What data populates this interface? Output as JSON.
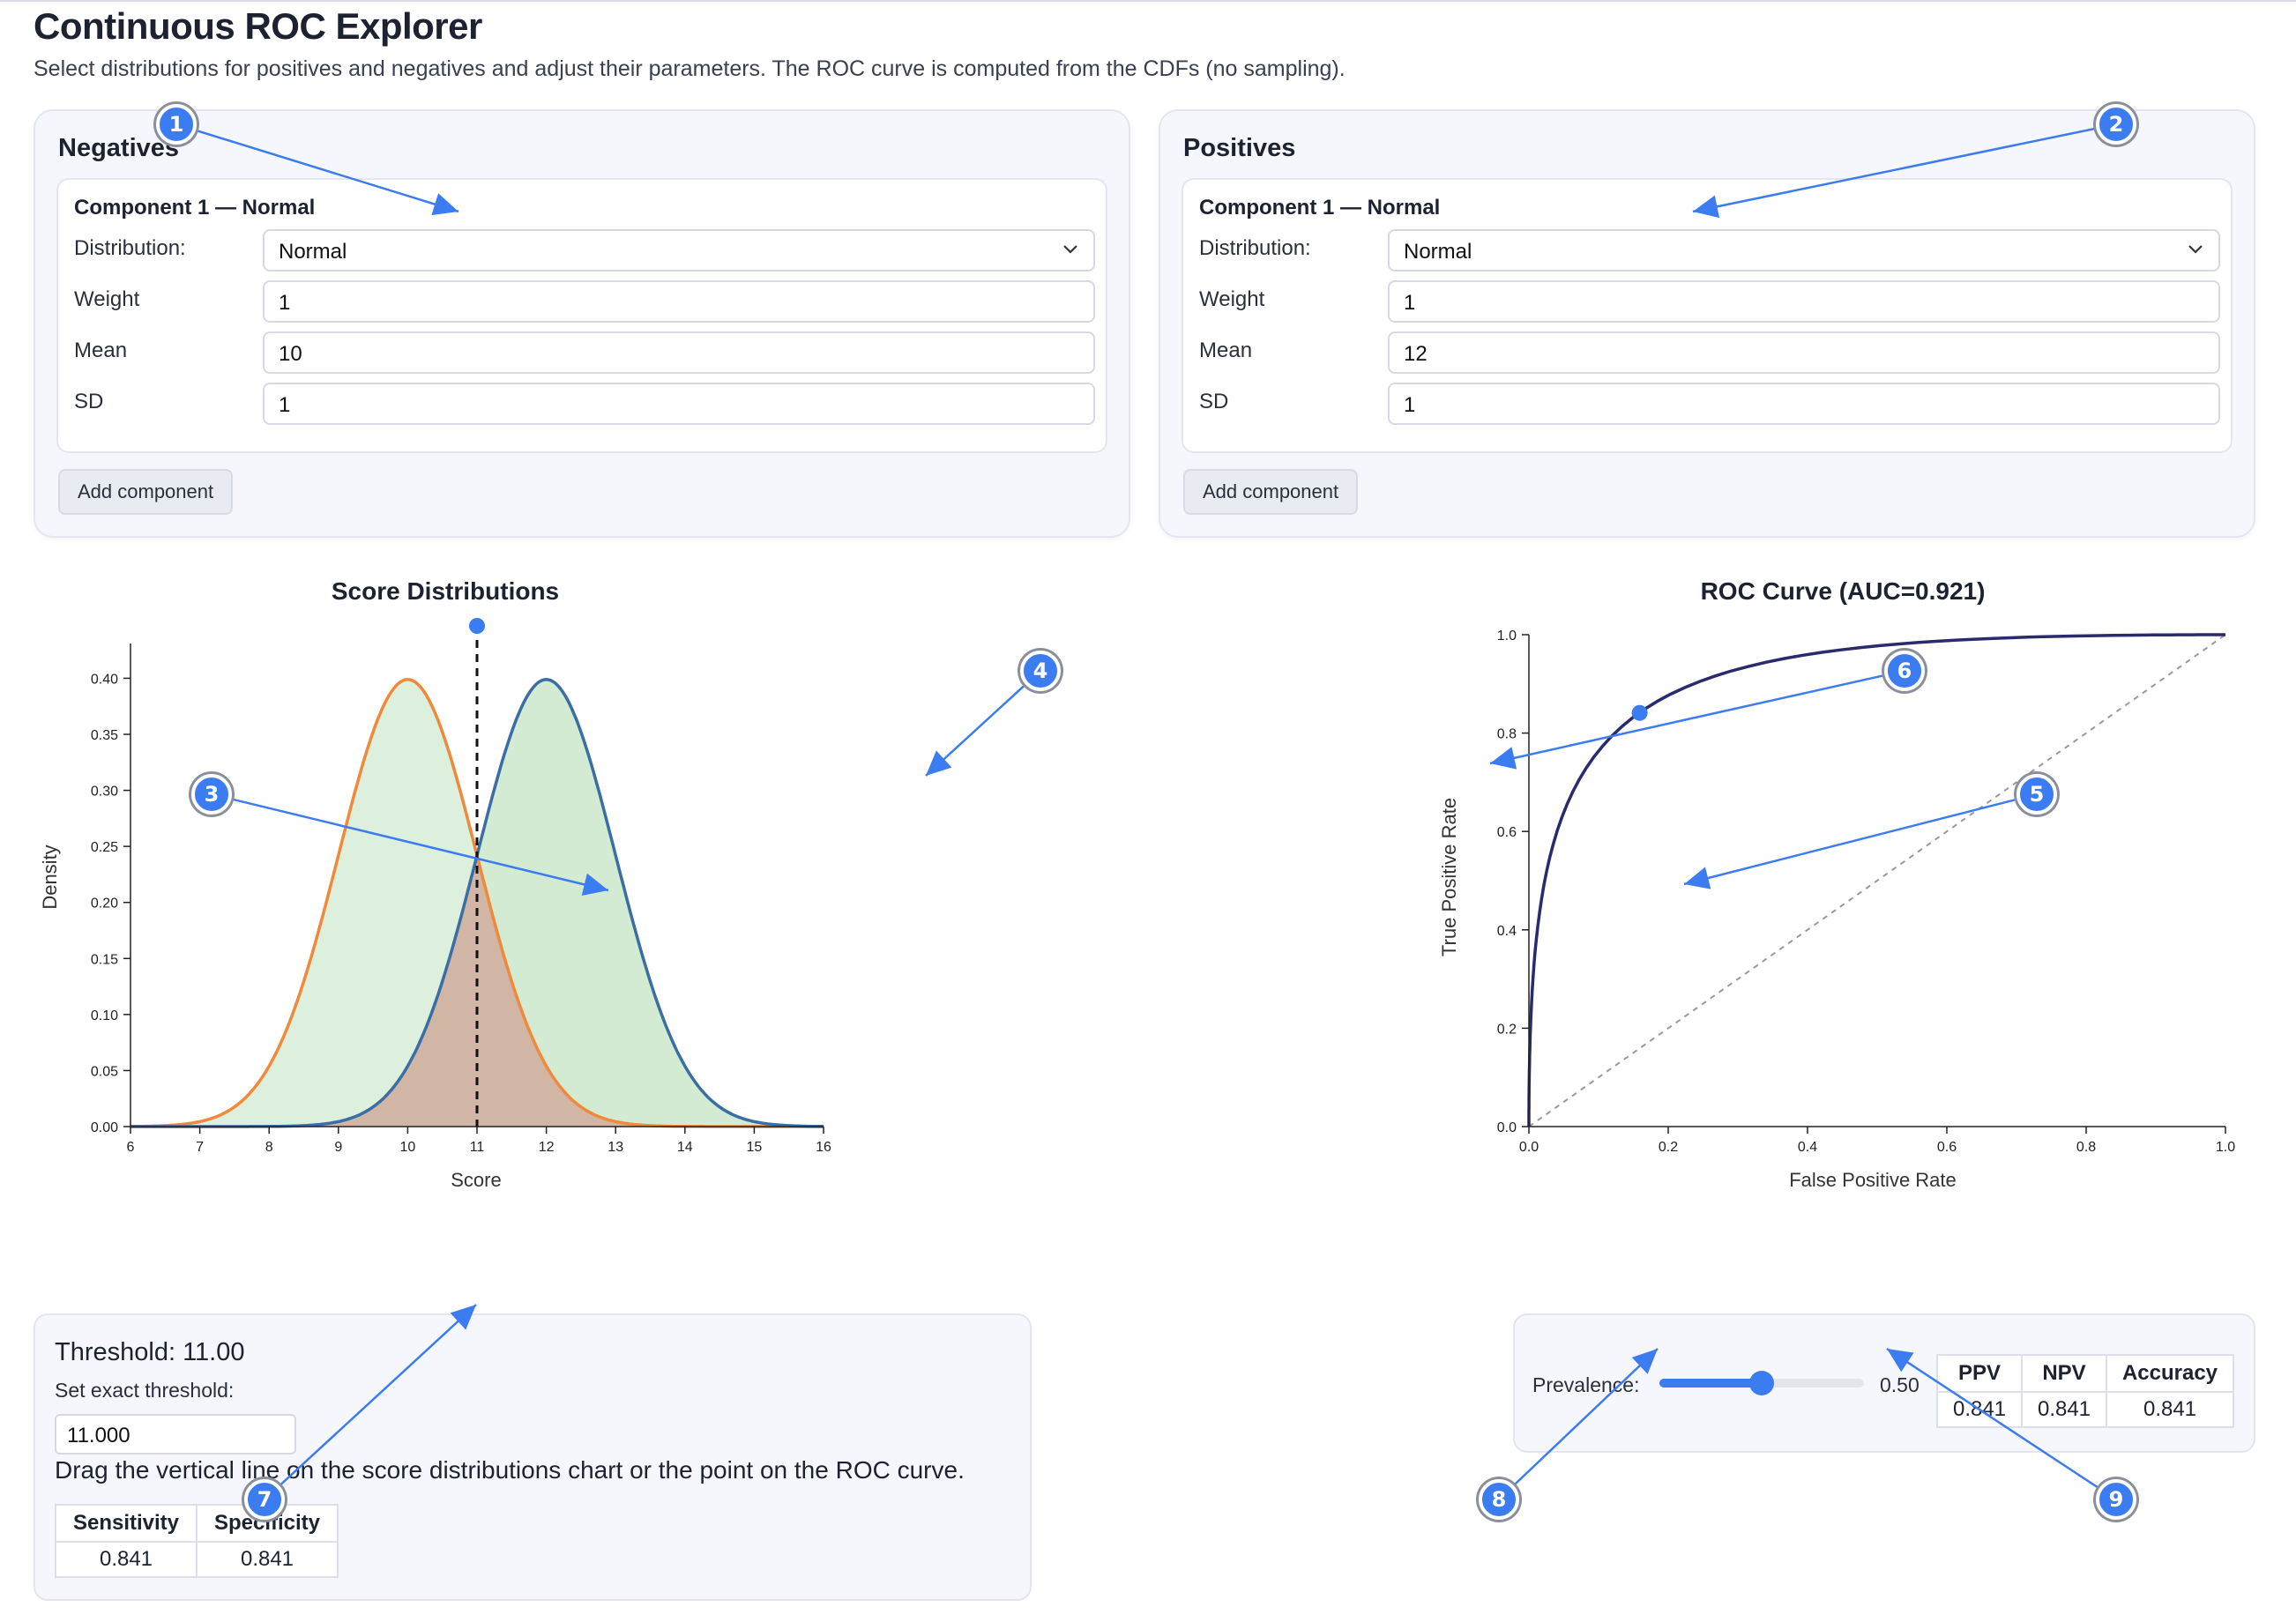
{
  "app": {
    "title": "Continuous ROC Explorer",
    "description": "Select distributions for positives and negatives and adjust their parameters. The ROC curve is computed from the CDFs (no sampling)."
  },
  "negatives": {
    "title": "Negatives",
    "component_title": "Component 1 — Normal",
    "distribution_label": "Distribution:",
    "distribution_value": "Normal",
    "weight_label": "Weight",
    "weight_value": "1",
    "mean_label": "Mean",
    "mean_value": "10",
    "sd_label": "SD",
    "sd_value": "1",
    "add_button": "Add component"
  },
  "positives": {
    "title": "Positives",
    "component_title": "Component 1 — Normal",
    "distribution_label": "Distribution:",
    "distribution_value": "Normal",
    "weight_label": "Weight",
    "weight_value": "1",
    "mean_label": "Mean",
    "mean_value": "12",
    "sd_label": "SD",
    "sd_value": "1",
    "add_button": "Add component"
  },
  "colors": {
    "negatives_curve": "#f08a3a",
    "positives_curve": "#3a6ea5",
    "roc_curve": "#2a2a6e",
    "annotation": "#3b7cf0",
    "slider": "#3b7cf0"
  },
  "chart_data": [
    {
      "type": "area",
      "title": "Score Distributions",
      "xlabel": "Score",
      "ylabel": "Density",
      "xlim": [
        6,
        16
      ],
      "ylim": [
        0,
        0.42
      ],
      "xticks": [
        "6",
        "7",
        "8",
        "9",
        "10",
        "11",
        "12",
        "13",
        "14",
        "15",
        "16"
      ],
      "yticks": [
        "0.00",
        "0.05",
        "0.10",
        "0.15",
        "0.20",
        "0.25",
        "0.30",
        "0.35",
        "0.40"
      ],
      "series": [
        {
          "distribution": "normal",
          "mean": 10,
          "sd": 1
        },
        {
          "distribution": "normal",
          "mean": 12,
          "sd": 1
        }
      ],
      "threshold": 11
    },
    {
      "type": "line",
      "title": "ROC Curve (AUC=0.921)",
      "xlabel": "False Positive Rate",
      "ylabel": "True Positive Rate",
      "xlim": [
        0,
        1
      ],
      "ylim": [
        0,
        1
      ],
      "xticks": [
        "0.0",
        "0.2",
        "0.4",
        "0.6",
        "0.8",
        "1.0"
      ],
      "yticks": [
        "0.0",
        "0.2",
        "0.4",
        "0.6",
        "0.8",
        "1.0"
      ],
      "operating_point": {
        "fpr": 0.159,
        "tpr": 0.841
      },
      "diagonal": true
    }
  ],
  "threshold_panel": {
    "heading": "Threshold: 11.00",
    "set_label": "Set exact threshold:",
    "input_value": "11.000",
    "hint": "Drag the vertical line on the score distributions chart or the point on the ROC curve.",
    "headers": [
      "Sensitivity",
      "Specificity"
    ],
    "values": [
      "0.841",
      "0.841"
    ]
  },
  "prevalence_panel": {
    "label": "Prevalence:",
    "value_text": "0.50",
    "value": 0.5,
    "headers": [
      "PPV",
      "NPV",
      "Accuracy"
    ],
    "values": [
      "0.841",
      "0.841",
      "0.841"
    ]
  },
  "annotations": [
    "1",
    "2",
    "3",
    "4",
    "5",
    "6",
    "7",
    "8",
    "9"
  ]
}
